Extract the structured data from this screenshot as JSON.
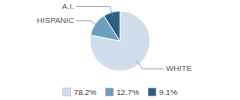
{
  "chart_data": {
    "type": "pie",
    "categories": [
      "WHITE",
      "HISPANIC",
      "A.I."
    ],
    "values": [
      78.2,
      12.7,
      9.1
    ],
    "value_labels": [
      "78.2%",
      "12.7%",
      "9.1%"
    ],
    "colors": [
      "#cfdded",
      "#6a9fc0",
      "#2e5f82"
    ],
    "legend": "bottom"
  }
}
